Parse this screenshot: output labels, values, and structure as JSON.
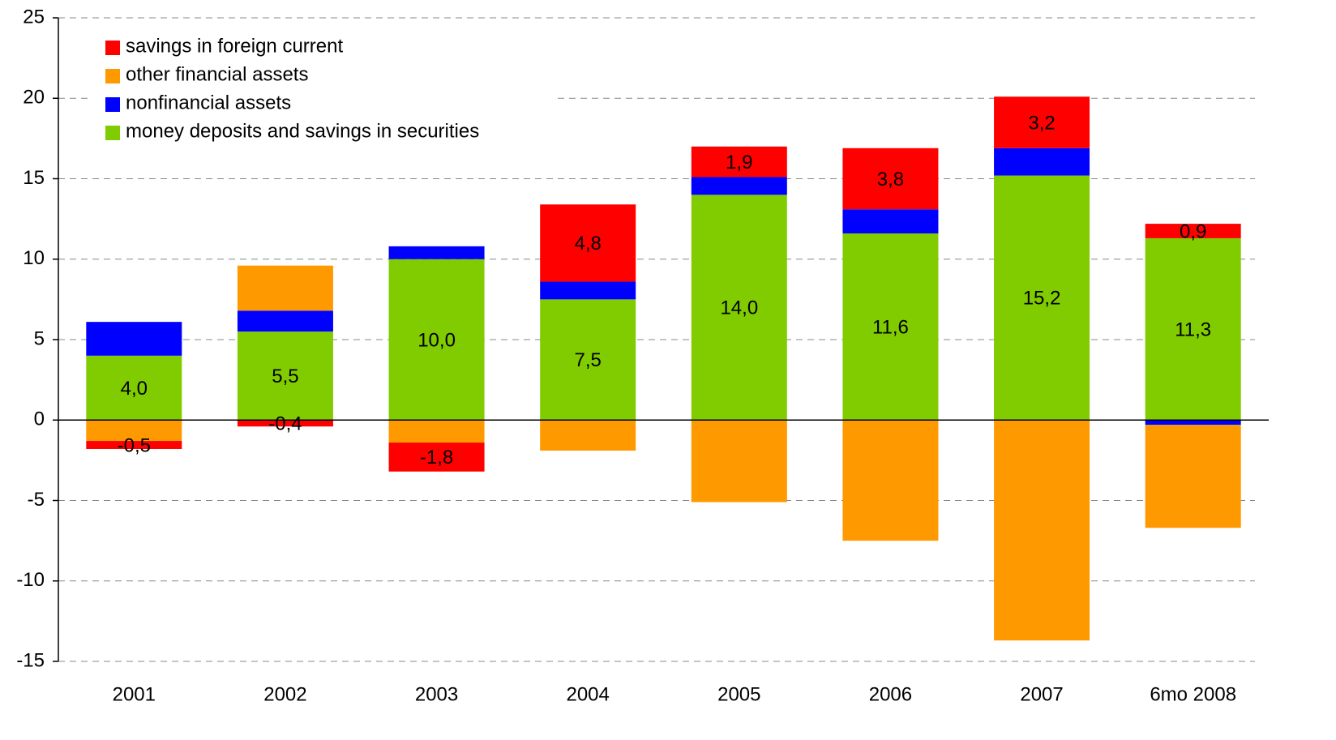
{
  "chart_data": {
    "type": "stacked_bar",
    "categories": [
      "2001",
      "2002",
      "2003",
      "2004",
      "2005",
      "2006",
      "2007",
      "6mo 2008"
    ],
    "series": [
      {
        "name": "money deposits and savings in securities",
        "color": "#80cc00",
        "values": [
          4.0,
          5.5,
          10.0,
          7.5,
          14.0,
          11.6,
          15.2,
          11.3
        ],
        "value_labels": [
          "4,0",
          "5,5",
          "10,0",
          "7,5",
          "14,0",
          "11,6",
          "15,2",
          "11,3"
        ]
      },
      {
        "name": "nonfinancial assets",
        "color": "#0000ff",
        "values": [
          2.1,
          1.3,
          0.8,
          1.1,
          1.1,
          1.5,
          1.7,
          -0.3
        ]
      },
      {
        "name": "other financial assets",
        "color": "#ff9900",
        "values": [
          -1.3,
          2.8,
          -1.4,
          -1.9,
          -5.1,
          -7.5,
          -13.7,
          -6.4
        ]
      },
      {
        "name": "savings in foreign current",
        "color": "#ff0000",
        "values": [
          -0.5,
          -0.4,
          -1.8,
          4.8,
          1.9,
          3.8,
          3.2,
          0.9
        ],
        "value_labels": [
          "-0,5",
          "-0,4",
          "-1,8",
          "4,8",
          "1,9",
          "3,8",
          "3,2",
          "0,9"
        ]
      }
    ],
    "ylim": [
      -15,
      25
    ],
    "yticks": [
      -15,
      -10,
      -5,
      0,
      5,
      10,
      15,
      20,
      25
    ],
    "grid": true,
    "legend": "upper left"
  }
}
